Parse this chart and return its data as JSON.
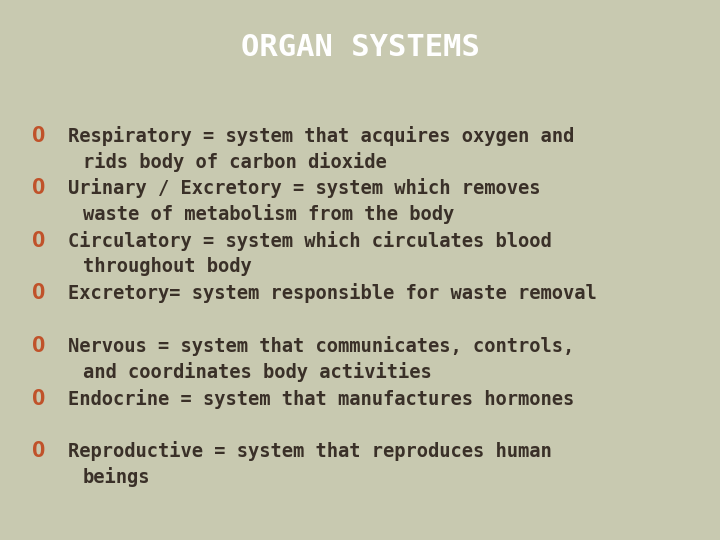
{
  "title": "ORGAN SYSTEMS",
  "title_bg_color": "#4a3f3a",
  "title_text_color": "#ffffff",
  "body_bg_color": "#c8c9b0",
  "bullet_color": "#c0522a",
  "text_color": "#3a3028",
  "bullet_char": "O",
  "items": [
    {
      "line1": "Respiratory = system that acquires oxygen and",
      "line2": "rids body of carbon dioxide"
    },
    {
      "line1": "Urinary / Excretory = system which removes",
      "line2": "waste of metabolism from the body"
    },
    {
      "line1": "Circulatory = system which circulates blood",
      "line2": "throughout body"
    },
    {
      "line1": "Excretory= system responsible for waste removal",
      "line2": null
    },
    {
      "line1": "Nervous = system that communicates, controls,",
      "line2": "and coordinates body activities"
    },
    {
      "line1": "Endocrine = system that manufactures hormones",
      "line2": null
    },
    {
      "line1": "Reproductive = system that reproduces human",
      "line2": "beings"
    }
  ],
  "font_family": "monospace",
  "title_fontsize": 22,
  "body_fontsize": 13.5,
  "bullet_fontsize": 16,
  "fig_width": 7.2,
  "fig_height": 5.4,
  "dpi": 100
}
